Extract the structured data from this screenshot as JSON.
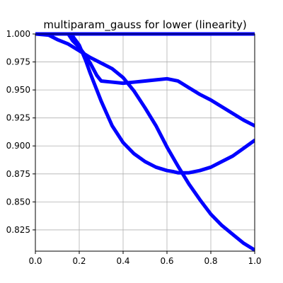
{
  "chart_data": {
    "type": "line",
    "title": "multiparam_gauss for lower (linearity)",
    "xlabel": "",
    "ylabel": "",
    "xlim": [
      0.0,
      1.0
    ],
    "ylim": [
      0.806,
      1.0
    ],
    "grid": true,
    "x_ticks": [
      0.0,
      0.2,
      0.4,
      0.6,
      0.8,
      1.0
    ],
    "x_tick_labels": [
      "0.0",
      "0.2",
      "0.4",
      "0.6",
      "0.8",
      "1.0"
    ],
    "y_ticks": [
      0.825,
      0.85,
      0.875,
      0.9,
      0.925,
      0.95,
      0.975,
      1.0
    ],
    "y_tick_labels": [
      "0.825",
      "0.850",
      "0.875",
      "0.900",
      "0.925",
      "0.950",
      "0.975",
      "1.000"
    ],
    "series_color": "#0000ff",
    "series": [
      {
        "x": [
          0.0,
          1.0
        ],
        "y": [
          1.0,
          1.0
        ]
      },
      {
        "x": [
          0.0,
          0.06,
          0.1,
          0.15,
          0.2,
          0.25,
          0.3,
          0.35,
          0.4,
          0.45,
          0.5,
          0.55,
          0.6,
          0.65,
          0.7,
          0.75,
          0.8,
          0.85,
          0.9,
          0.95,
          1.0
        ],
        "y": [
          1.0,
          0.999,
          0.995,
          0.991,
          0.985,
          0.979,
          0.974,
          0.969,
          0.961,
          0.949,
          0.934,
          0.918,
          0.899,
          0.882,
          0.866,
          0.852,
          0.839,
          0.829,
          0.821,
          0.813,
          0.807
        ]
      },
      {
        "x": [
          0.15,
          0.17,
          0.2,
          0.22,
          0.25,
          0.28,
          0.3,
          0.35,
          0.4,
          0.45,
          0.5,
          0.55,
          0.6,
          0.65,
          0.7,
          0.75,
          0.8,
          0.85,
          0.9,
          0.95,
          1.0
        ],
        "y": [
          1.0,
          0.994,
          0.988,
          0.983,
          0.974,
          0.963,
          0.958,
          0.957,
          0.956,
          0.957,
          0.958,
          0.959,
          0.96,
          0.958,
          0.952,
          0.946,
          0.941,
          0.935,
          0.929,
          0.923,
          0.918
        ]
      },
      {
        "x": [
          0.15,
          0.17,
          0.2,
          0.23,
          0.25,
          0.3,
          0.35,
          0.4,
          0.45,
          0.5,
          0.55,
          0.6,
          0.63,
          0.65,
          0.7,
          0.75,
          0.8,
          0.85,
          0.9,
          0.95,
          1.0
        ],
        "y": [
          1.0,
          0.998,
          0.99,
          0.976,
          0.965,
          0.94,
          0.918,
          0.903,
          0.893,
          0.886,
          0.881,
          0.878,
          0.877,
          0.876,
          0.876,
          0.878,
          0.881,
          0.886,
          0.891,
          0.898,
          0.905
        ]
      }
    ]
  }
}
